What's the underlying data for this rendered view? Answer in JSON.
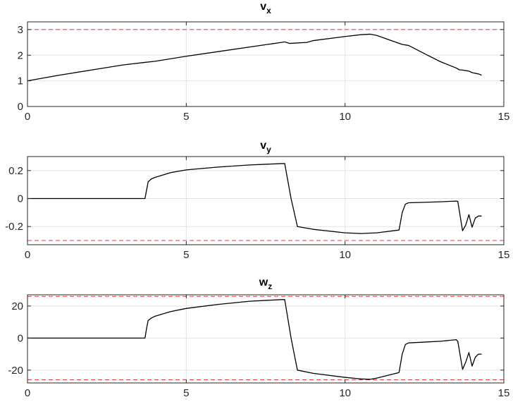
{
  "chart_data": [
    {
      "type": "line",
      "title_main": "v",
      "title_sub": "x",
      "xlim": [
        0,
        15
      ],
      "ylim": [
        0,
        3.3
      ],
      "xticks": [
        0,
        5,
        10,
        15
      ],
      "yticks": [
        0,
        1,
        2,
        3
      ],
      "ytick_labels": [
        "0",
        "1",
        "2",
        "3"
      ],
      "grid": true,
      "limits": [
        3,
        0
      ],
      "limit_style": "red dashed",
      "series": [
        {
          "color": "#000000",
          "x": [
            0,
            1,
            2,
            3,
            3.7,
            4,
            5,
            6,
            7,
            8,
            8.1,
            8.25,
            8.4,
            8.8,
            9,
            10,
            10.5,
            10.8,
            11,
            11.5,
            11.8,
            12,
            12.5,
            13,
            13.5,
            13.6,
            13.7,
            13.9,
            14,
            14.2,
            14.3
          ],
          "y": [
            1.0,
            1.22,
            1.42,
            1.62,
            1.72,
            1.76,
            1.96,
            2.14,
            2.32,
            2.5,
            2.52,
            2.46,
            2.47,
            2.5,
            2.57,
            2.73,
            2.8,
            2.82,
            2.77,
            2.55,
            2.42,
            2.38,
            2.06,
            1.75,
            1.5,
            1.43,
            1.42,
            1.38,
            1.32,
            1.27,
            1.22
          ]
        }
      ]
    },
    {
      "type": "line",
      "title_main": "v",
      "title_sub": "y",
      "xlim": [
        0,
        15
      ],
      "ylim": [
        -0.33,
        0.3
      ],
      "xticks": [
        0,
        5,
        10,
        15
      ],
      "yticks": [
        -0.2,
        0,
        0.2
      ],
      "ytick_labels": [
        "-0.2",
        "0",
        "0.2"
      ],
      "grid": true,
      "limits": [
        0.3,
        -0.3
      ],
      "limit_style": "red dashed",
      "series": [
        {
          "color": "#000000",
          "x": [
            0,
            3.7,
            3.75,
            3.8,
            3.9,
            4.0,
            4.5,
            5,
            6,
            7,
            8,
            8.1,
            8.3,
            8.5,
            9,
            10,
            10.5,
            11,
            11.7,
            11.8,
            11.9,
            12,
            12.5,
            13,
            13.5,
            13.55,
            13.7,
            13.8,
            13.9,
            14.0,
            14.1,
            14.2,
            14.3
          ],
          "y": [
            0,
            0,
            0.06,
            0.12,
            0.14,
            0.15,
            0.185,
            0.205,
            0.225,
            0.24,
            0.25,
            0.25,
            0.0,
            -0.2,
            -0.22,
            -0.245,
            -0.25,
            -0.245,
            -0.225,
            -0.1,
            -0.04,
            -0.03,
            -0.027,
            -0.023,
            -0.018,
            -0.02,
            -0.23,
            -0.19,
            -0.115,
            -0.205,
            -0.14,
            -0.125,
            -0.125
          ]
        }
      ]
    },
    {
      "type": "line",
      "title_main": "w",
      "title_sub": "z",
      "xlim": [
        0,
        15
      ],
      "ylim": [
        -28,
        27
      ],
      "xticks": [
        0,
        5,
        10,
        15
      ],
      "yticks": [
        -20,
        0,
        20
      ],
      "ytick_labels": [
        "-20",
        "0",
        "20"
      ],
      "grid": true,
      "limits": [
        26,
        -26
      ],
      "limit_style": "red dashed",
      "series": [
        {
          "color": "#000000",
          "x": [
            0,
            3.7,
            3.75,
            3.8,
            3.9,
            4.0,
            4.5,
            5,
            6,
            7,
            8,
            8.1,
            8.3,
            8.5,
            9,
            10,
            10.5,
            10.8,
            11,
            11.7,
            11.8,
            11.9,
            12,
            12.5,
            13,
            13.5,
            13.55,
            13.7,
            13.8,
            13.9,
            14.0,
            14.1,
            14.2,
            14.3
          ],
          "y": [
            0,
            0,
            6,
            11,
            12.5,
            13.5,
            16.5,
            18.5,
            21,
            23,
            24,
            24,
            0,
            -20,
            -22,
            -24.5,
            -25.5,
            -25.7,
            -25,
            -21.5,
            -10,
            -4,
            -3,
            -2.5,
            -2,
            -1,
            -2,
            -19.5,
            -15,
            -9,
            -17.5,
            -12,
            -10,
            -10
          ]
        }
      ]
    }
  ]
}
